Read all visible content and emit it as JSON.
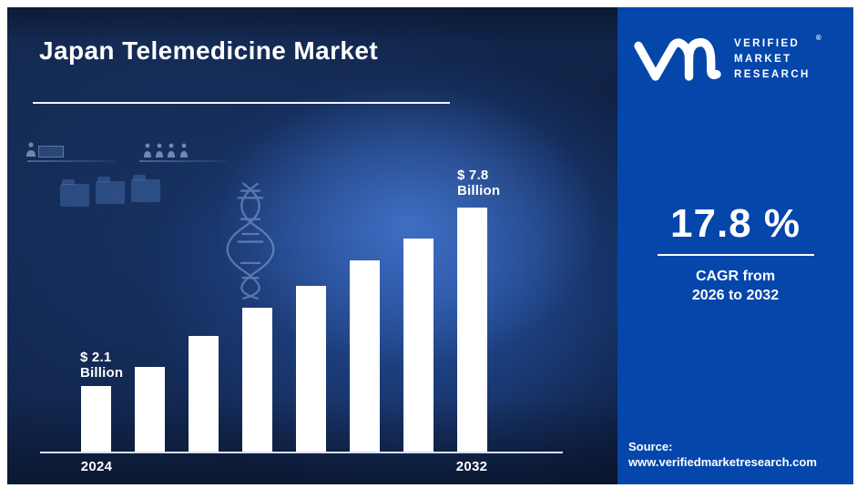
{
  "header": {
    "title": "Japan Telemedicine Market"
  },
  "brand": {
    "line1": "VERIFIED",
    "line2": "MARKET",
    "line3": "RESEARCH",
    "registered": "®"
  },
  "stat": {
    "value": "17.8 %",
    "caption_line1": "CAGR from",
    "caption_line2": "2026 to 2032"
  },
  "source": {
    "label": "Source:",
    "url": "www.verifiedmarketresearch.com"
  },
  "colors": {
    "left_panel_navy": "#102449",
    "right_panel_blue": "#0546ab",
    "bar_color": "#ffffff",
    "text_color": "#ffffff",
    "axis_color": "#d9dfeb"
  },
  "icons": [
    "vmr-monogram",
    "registered-mark-icon",
    "folder-icon",
    "person-icon",
    "dna-helix-icon"
  ],
  "chart_data": {
    "type": "bar",
    "title": "Japan Telemedicine Market",
    "unit": "USD Billion",
    "categories": [
      "2024",
      "",
      "",
      "",
      "",
      "",
      "",
      "2032"
    ],
    "values": [
      2.1,
      2.7,
      3.7,
      4.6,
      5.3,
      6.1,
      6.8,
      7.8
    ],
    "ylim": [
      0,
      8
    ],
    "grid": false,
    "legend": "none",
    "bar_color": "#ffffff",
    "annotations": [
      {
        "bar_index": 0,
        "line1": "$ 2.1",
        "line2": "Billion"
      },
      {
        "bar_index": 7,
        "line1": "$ 7.8",
        "line2": "Billion"
      }
    ]
  }
}
